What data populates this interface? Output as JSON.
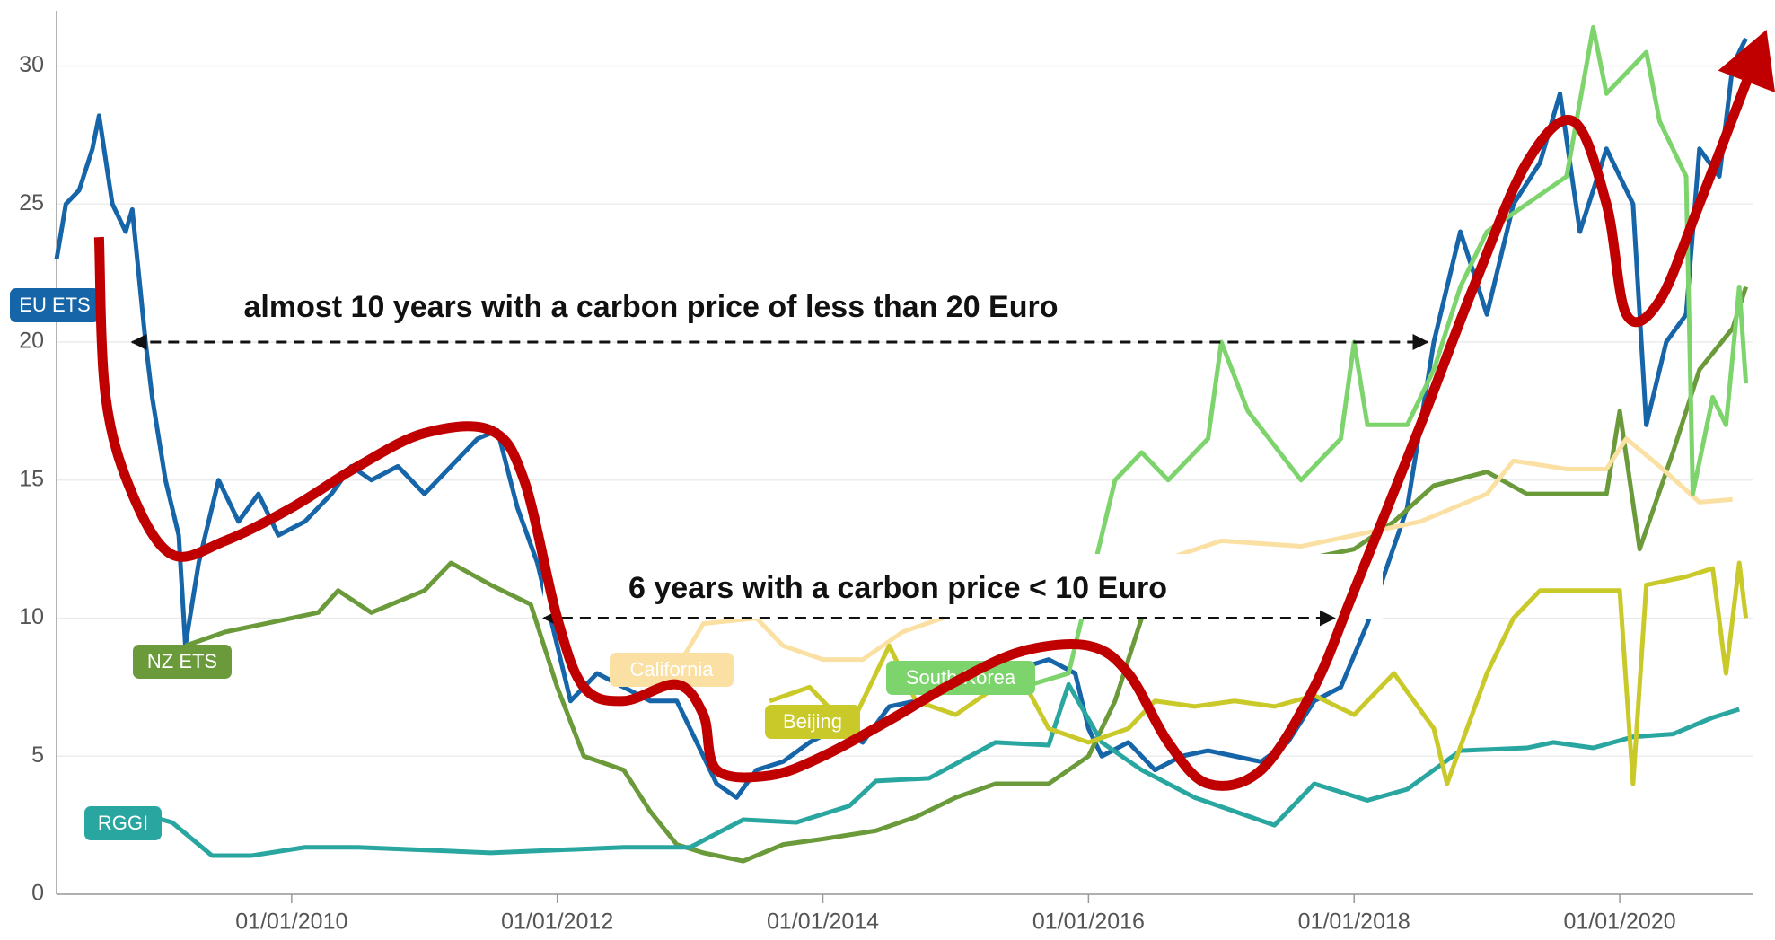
{
  "chart_data": {
    "type": "line",
    "xlim": [
      2008.23,
      2021
    ],
    "ylim": [
      0,
      32
    ],
    "xticks": [
      {
        "value": 2010,
        "label": "01/01/2010"
      },
      {
        "value": 2012,
        "label": "01/01/2012"
      },
      {
        "value": 2014,
        "label": "01/01/2014"
      },
      {
        "value": 2016,
        "label": "01/01/2016"
      },
      {
        "value": 2018,
        "label": "01/01/2018"
      },
      {
        "value": 2020,
        "label": "01/01/2020"
      }
    ],
    "yticks": [
      0,
      5,
      10,
      15,
      20,
      25,
      30
    ],
    "grid": true,
    "series": [
      {
        "name": "EU ETS",
        "color": "#1565a8",
        "x": [
          2008.23,
          2008.3,
          2008.4,
          2008.5,
          2008.55,
          2008.65,
          2008.75,
          2008.8,
          2008.9,
          2008.95,
          2009.05,
          2009.15,
          2009.2,
          2009.3,
          2009.45,
          2009.6,
          2009.75,
          2009.9,
          2010.1,
          2010.3,
          2010.45,
          2010.6,
          2010.8,
          2011.0,
          2011.2,
          2011.4,
          2011.55,
          2011.7,
          2011.85,
          2012.0,
          2012.1,
          2012.3,
          2012.5,
          2012.7,
          2012.9,
          2013.05,
          2013.2,
          2013.35,
          2013.5,
          2013.7,
          2013.9,
          2014.1,
          2014.3,
          2014.5,
          2014.7,
          2014.9,
          2015.1,
          2015.3,
          2015.5,
          2015.7,
          2015.9,
          2016.0,
          2016.1,
          2016.3,
          2016.5,
          2016.7,
          2016.9,
          2017.1,
          2017.3,
          2017.5,
          2017.7,
          2017.9,
          2018.1,
          2018.4,
          2018.6,
          2018.7,
          2018.8,
          2019.0,
          2019.2,
          2019.4,
          2019.55,
          2019.7,
          2019.9,
          2020.1,
          2020.2,
          2020.35,
          2020.5,
          2020.6,
          2020.75,
          2020.85,
          2020.95
        ],
        "values": [
          23,
          25,
          25.5,
          27,
          28.2,
          25,
          24,
          24.8,
          20,
          18,
          15,
          13,
          9,
          12,
          15,
          13.5,
          14.5,
          13,
          13.5,
          14.5,
          15.5,
          15,
          15.5,
          14.5,
          15.5,
          16.5,
          16.8,
          14,
          12,
          9,
          7,
          8,
          7.5,
          7,
          7,
          5.5,
          4,
          3.5,
          4.5,
          4.8,
          5.5,
          6,
          5.5,
          6.8,
          7,
          7.3,
          7.5,
          8,
          8.2,
          8.5,
          8,
          6,
          5,
          5.5,
          4.5,
          5,
          5.2,
          5,
          4.8,
          5.5,
          7,
          7.5,
          9.8,
          14,
          20,
          22,
          24,
          21,
          25,
          26.5,
          29,
          24,
          27,
          25,
          17,
          20,
          21,
          27,
          26,
          30,
          31
        ]
      },
      {
        "name": "NZ ETS",
        "color": "#6a9a3a",
        "x": [
          2009.2,
          2009.5,
          2009.8,
          2010.2,
          2010.35,
          2010.6,
          2011.0,
          2011.2,
          2011.5,
          2011.8,
          2012.0,
          2012.2,
          2012.5,
          2012.7,
          2012.9,
          2013.1,
          2013.4,
          2013.7,
          2014.0,
          2014.4,
          2014.7,
          2015.0,
          2015.3,
          2015.7,
          2016.0,
          2016.2,
          2016.4,
          2016.6,
          2017.0,
          2017.5,
          2018.0,
          2018.3,
          2018.6,
          2019.0,
          2019.3,
          2019.6,
          2019.9,
          2020.0,
          2020.15,
          2020.4,
          2020.6,
          2020.85,
          2020.95
        ],
        "values": [
          9,
          9.5,
          9.8,
          10.2,
          11,
          10.2,
          11,
          12,
          11.2,
          10.5,
          7.5,
          5,
          4.5,
          3,
          1.8,
          1.5,
          1.2,
          1.8,
          2,
          2.3,
          2.8,
          3.5,
          4,
          4,
          5,
          7,
          10,
          12.2,
          12,
          12,
          12.5,
          13.5,
          14.8,
          15.3,
          14.5,
          14.5,
          14.5,
          17.5,
          12.5,
          16,
          19,
          20.5,
          22
        ]
      },
      {
        "name": "RGGI",
        "color": "#2aa6a0",
        "x": [
          2008.5,
          2008.8,
          2009.1,
          2009.4,
          2009.7,
          2010.1,
          2010.5,
          2011.0,
          2011.5,
          2012.0,
          2012.5,
          2013.0,
          2013.4,
          2013.8,
          2014.2,
          2014.4,
          2014.8,
          2015.3,
          2015.7,
          2015.85,
          2016.1,
          2016.4,
          2016.8,
          2017.4,
          2017.7,
          2018.1,
          2018.4,
          2018.8,
          2019.3,
          2019.5,
          2019.8,
          2020.1,
          2020.4,
          2020.7,
          2020.9
        ],
        "values": [
          2.8,
          3.0,
          2.6,
          1.4,
          1.4,
          1.7,
          1.7,
          1.6,
          1.5,
          1.6,
          1.7,
          1.7,
          2.7,
          2.6,
          3.2,
          4.1,
          4.2,
          5.5,
          5.4,
          7.6,
          5.5,
          4.5,
          3.5,
          2.5,
          4,
          3.4,
          3.8,
          5.2,
          5.3,
          5.5,
          5.3,
          5.7,
          5.8,
          6.4,
          6.7
        ]
      },
      {
        "name": "California",
        "color": "#fbe0a4",
        "x": [
          2012.85,
          2013.1,
          2013.5,
          2013.7,
          2014.0,
          2014.3,
          2014.6,
          2014.9,
          2015.3,
          2016.5,
          2017.0,
          2017.6,
          2018.0,
          2018.5,
          2019.0,
          2019.2,
          2019.6,
          2019.9,
          2020.05,
          2020.3,
          2020.6,
          2020.85
        ],
        "values": [
          7.8,
          9.8,
          10,
          9,
          8.5,
          8.5,
          9.5,
          10,
          12,
          12,
          12.8,
          12.6,
          13,
          13.5,
          14.5,
          15.7,
          15.4,
          15.4,
          16.5,
          15.5,
          14.2,
          14.3
        ]
      },
      {
        "name": "Beijing",
        "color": "#c9c92a",
        "x": [
          2013.6,
          2013.9,
          2014.2,
          2014.5,
          2014.7,
          2015.0,
          2015.3,
          2015.5,
          2015.7,
          2016.0,
          2016.3,
          2016.5,
          2016.8,
          2017.1,
          2017.4,
          2017.7,
          2018.0,
          2018.3,
          2018.6,
          2018.7,
          2019.0,
          2019.2,
          2019.4,
          2019.8,
          2020.0,
          2020.1,
          2020.2,
          2020.5,
          2020.7,
          2020.8,
          2020.9,
          2020.95
        ],
        "values": [
          7,
          7.5,
          6,
          9,
          7,
          6.5,
          7.5,
          7.8,
          6,
          5.5,
          6,
          7,
          6.8,
          7,
          6.8,
          7.2,
          6.5,
          8,
          6,
          4,
          8,
          10,
          11,
          11,
          11,
          4,
          11.2,
          11.5,
          11.8,
          8,
          12,
          10
        ]
      },
      {
        "name": "South Korea",
        "color": "#7dd46c",
        "x": [
          2015.1,
          2015.5,
          2015.85,
          2016.1,
          2016.2,
          2016.3,
          2016.4,
          2016.6,
          2016.9,
          2017.0,
          2017.2,
          2017.6,
          2017.9,
          2018.0,
          2018.1,
          2018.4,
          2018.6,
          2018.8,
          2019.0,
          2019.3,
          2019.6,
          2019.8,
          2019.9,
          2020.2,
          2020.3,
          2020.5,
          2020.55,
          2020.7,
          2020.8,
          2020.9,
          2020.95
        ],
        "values": [
          8.2,
          7.5,
          8,
          13,
          15,
          15.5,
          16,
          15,
          16.5,
          20,
          17.5,
          15,
          16.5,
          20,
          17,
          17,
          19,
          22,
          24,
          25,
          26,
          31.4,
          29,
          30.5,
          28,
          26,
          14.5,
          18,
          17,
          22,
          18.5
        ]
      }
    ],
    "trend": {
      "color": "#c00000",
      "x": [
        2008.55,
        2008.6,
        2008.8,
        2009.1,
        2009.5,
        2010.0,
        2010.5,
        2011.0,
        2011.5,
        2011.75,
        2012.0,
        2012.2,
        2012.5,
        2012.9,
        2013.1,
        2013.2,
        2013.6,
        2014.0,
        2014.5,
        2015.0,
        2015.5,
        2016.0,
        2016.3,
        2016.6,
        2016.9,
        2017.3,
        2017.7,
        2018.0,
        2018.5,
        2018.9,
        2019.3,
        2019.65,
        2019.9,
        2020.05,
        2020.3,
        2020.6,
        2021.0
      ],
      "values": [
        23.8,
        18,
        14.5,
        12.3,
        12.8,
        14,
        15.5,
        16.7,
        16.8,
        15,
        10,
        7.5,
        7,
        7.6,
        6.5,
        4.5,
        4.3,
        5,
        6.3,
        7.7,
        8.8,
        9,
        8,
        5.5,
        4,
        4.5,
        7.5,
        11,
        17,
        22,
        26.5,
        28,
        25,
        21,
        21.5,
        25,
        30
      ]
    },
    "annotations": [
      {
        "text": "almost 10 years with a carbon price of less than 20 Euro",
        "arrow": {
          "from": 2008.8,
          "to": 2018.55,
          "y": 20
        }
      },
      {
        "text": "6 years with a carbon price < 10 Euro",
        "arrow": {
          "from": 2011.9,
          "to": 2017.85,
          "y": 10
        }
      }
    ]
  }
}
